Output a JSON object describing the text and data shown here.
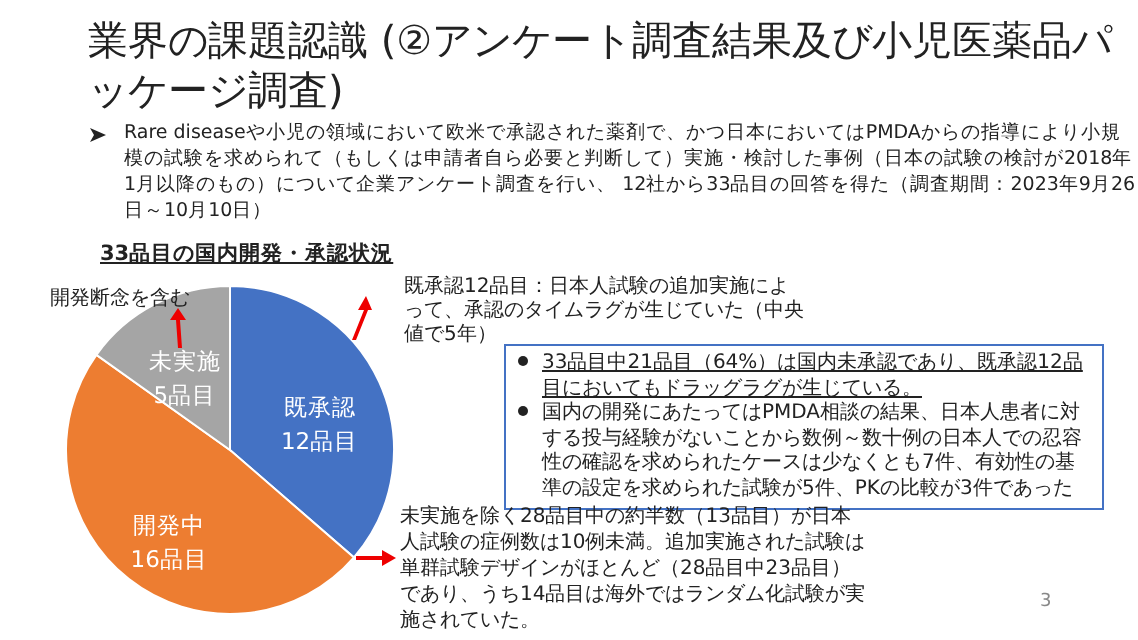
{
  "chart_data": {
    "type": "pie",
    "title": "業界の課題認識 (②アンケート調査結果及び小児医薬品パッケージ調査)",
    "subtitle": "Rare diseaseや小児の領域において欧米で承認された薬剤で、かつ日本においてはPMDAからの指導により小規模の試験を求められて（もしくは申請者自ら必要と判断して）実施・検討した事例（日本の試験の検討が2018年1月以降のもの）について企業アンケート調査を行い、 12社から33品目の回答を得た（調査期間：2023年9月26日～10月10日）",
    "xlabel": "33品目の国内開発・承認状況",
    "categories": [
      "既承認",
      "開発中",
      "未実施"
    ],
    "values": [
      12,
      16,
      5
    ],
    "value_labels": [
      "12品目",
      "16品目",
      "5品目"
    ],
    "colors": [
      "#4472c4",
      "#ed7d31",
      "#a5a5a5"
    ],
    "annotations": [
      "開発断念を含む",
      "既承認12品目：日本人試験の追加実施によって、承認のタイムラグが生じていた（中央値で5年）",
      "33品目中21品目（64%）は国内未承認であり、既承認12品目においてもドラッグラグが生じている。",
      "国内の開発にあたってはPMDA相談の結果、日本人患者に対する投与経験がないことから数例～数十例の日本人での忍容性の確認を求められたケースは少なくとも7件、有効性の基準の設定を求められた試験が5件、PKの比較が3件であった",
      "未実施を除く28品目中の約半数（13品目）が日本人試験の症例数は10例未満。追加実施された試験は単群試験デザインがほとんど（28品目中23品目）であり、うち14品目は海外ではランダム化試験が実施されていた。",
      "3"
    ]
  }
}
